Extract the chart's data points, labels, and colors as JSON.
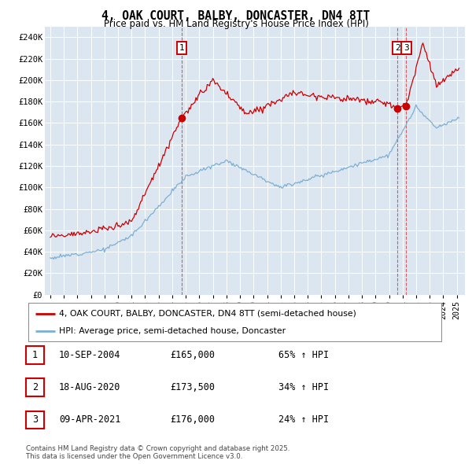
{
  "title": "4, OAK COURT, BALBY, DONCASTER, DN4 8TT",
  "subtitle": "Price paid vs. HM Land Registry's House Price Index (HPI)",
  "bg_color": "#dce6f1",
  "red_color": "#cc0000",
  "blue_color": "#7bafd4",
  "ylim": [
    0,
    250000
  ],
  "yticks": [
    0,
    20000,
    40000,
    60000,
    80000,
    100000,
    120000,
    140000,
    160000,
    180000,
    200000,
    220000,
    240000
  ],
  "sale1_date": 2004.69,
  "sale1_price": 165000,
  "sale1_label": "1",
  "sale2_date": 2020.625,
  "sale2_price": 173500,
  "sale2_label": "2",
  "sale3_date": 2021.27,
  "sale3_price": 176000,
  "sale3_label": "3",
  "legend_red": "4, OAK COURT, BALBY, DONCASTER, DN4 8TT (semi-detached house)",
  "legend_blue": "HPI: Average price, semi-detached house, Doncaster",
  "table_rows": [
    {
      "num": "1",
      "date": "10-SEP-2004",
      "price": "£165,000",
      "hpi": "65% ↑ HPI"
    },
    {
      "num": "2",
      "date": "18-AUG-2020",
      "price": "£173,500",
      "hpi": "34% ↑ HPI"
    },
    {
      "num": "3",
      "date": "09-APR-2021",
      "price": "£176,000",
      "hpi": "24% ↑ HPI"
    }
  ],
  "footnote": "Contains HM Land Registry data © Crown copyright and database right 2025.\nThis data is licensed under the Open Government Licence v3.0."
}
